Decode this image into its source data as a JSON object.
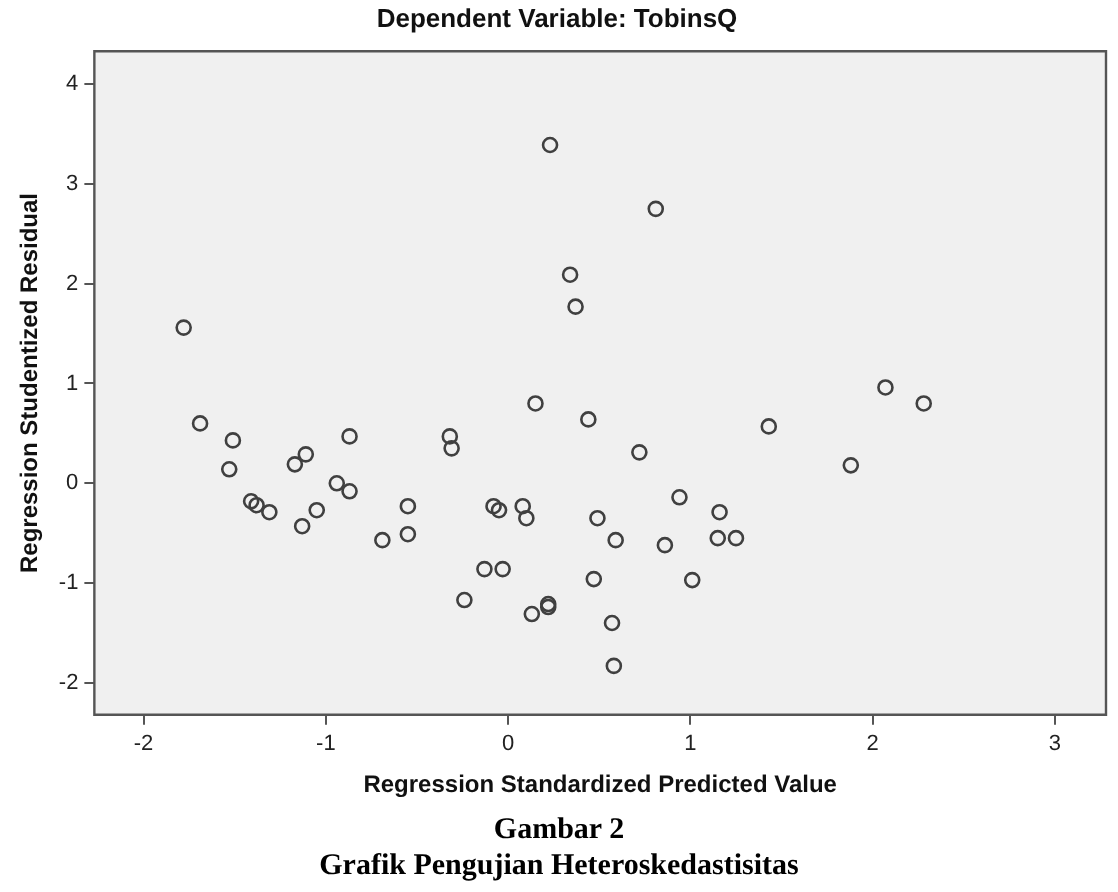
{
  "chart_data": {
    "type": "scatter",
    "title": "Dependent Variable: TobinsQ",
    "xlabel": "Regression Standardized Predicted Value",
    "ylabel": "Regression Studentized Residual",
    "annotations": [
      "Gambar 2",
      "Grafik Pengujian Heteroskedastisitas"
    ],
    "x": [
      -1.78,
      -1.69,
      -1.51,
      -1.53,
      -1.41,
      -1.38,
      -1.31,
      -1.17,
      -1.11,
      -1.05,
      -1.13,
      -0.94,
      -0.87,
      -0.87,
      -0.69,
      -0.55,
      -0.55,
      -0.32,
      -0.31,
      -0.08,
      -0.05,
      0.08,
      0.1,
      0.15,
      0.34,
      0.37,
      0.44,
      0.49,
      0.23,
      0.81,
      2.07,
      2.28,
      1.43,
      0.72,
      1.88,
      0.94,
      1.16,
      0.59,
      0.86,
      1.15,
      1.25,
      0.47,
      1.01,
      0.57,
      0.58,
      -0.13,
      -0.03,
      -0.24,
      0.13,
      0.22,
      0.22
    ],
    "series": [
      {
        "color": "#404040",
        "values": [
          1.56,
          0.6,
          0.43,
          0.14,
          -0.18,
          -0.22,
          -0.29,
          0.19,
          0.29,
          -0.27,
          -0.43,
          0.0,
          -0.08,
          0.47,
          -0.57,
          -0.51,
          -0.23,
          0.47,
          0.35,
          -0.23,
          -0.27,
          -0.23,
          -0.35,
          0.8,
          2.09,
          1.77,
          0.64,
          -0.35,
          3.39,
          2.75,
          0.96,
          0.8,
          0.57,
          0.31,
          0.18,
          -0.14,
          -0.29,
          -0.57,
          -0.62,
          -0.55,
          -0.55,
          -0.96,
          -0.97,
          -1.4,
          -1.83,
          -0.86,
          -0.86,
          -1.17,
          -1.31,
          -1.21,
          -1.24
        ]
      }
    ],
    "xlim": [
      -2.27,
      3.28
    ],
    "ylim": [
      -2.32,
      4.33
    ],
    "xticks": [
      -2,
      -1,
      0,
      1,
      2,
      3
    ],
    "yticks": [
      -2,
      -1,
      0,
      1,
      2,
      3,
      4
    ],
    "grid": false,
    "legend": false,
    "marker": "circle"
  }
}
